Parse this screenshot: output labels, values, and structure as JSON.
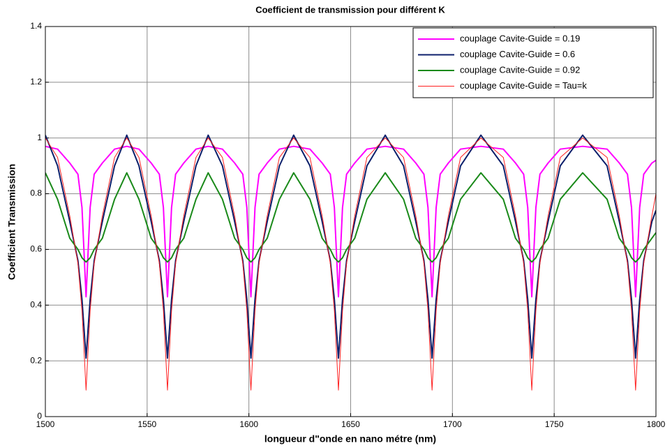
{
  "chart_data": {
    "type": "line",
    "title": "Coefficient de transmission pour différent K",
    "xlabel": "longueur d\"onde en nano métre (nm)",
    "ylabel": "Coefficient Transmission",
    "x": [
      1500,
      1506,
      1512,
      1516,
      1518,
      1520,
      1522,
      1524,
      1528,
      1534,
      1540,
      1546,
      1552,
      1556,
      1558,
      1560,
      1562,
      1564,
      1568,
      1574,
      1580,
      1587,
      1593,
      1597,
      1599,
      1601,
      1603,
      1605,
      1609,
      1615,
      1622,
      1630,
      1636,
      1640,
      1642,
      1644,
      1646,
      1648,
      1652,
      1658,
      1667,
      1676,
      1682,
      1686,
      1688,
      1690,
      1692,
      1694,
      1698,
      1704,
      1714,
      1725,
      1731,
      1735,
      1737,
      1739,
      1741,
      1743,
      1747,
      1753,
      1764,
      1776,
      1782,
      1786,
      1788,
      1790,
      1792,
      1794,
      1798,
      1800
    ],
    "series": [
      {
        "name": "couplage Cavite-Guide = 0.19",
        "color": "#ff00ff",
        "width": 2,
        "values": [
          0.97,
          0.96,
          0.91,
          0.87,
          0.75,
          0.43,
          0.75,
          0.87,
          0.91,
          0.96,
          0.97,
          0.96,
          0.91,
          0.87,
          0.75,
          0.43,
          0.75,
          0.87,
          0.91,
          0.96,
          0.97,
          0.96,
          0.91,
          0.87,
          0.75,
          0.43,
          0.75,
          0.87,
          0.91,
          0.96,
          0.97,
          0.96,
          0.91,
          0.87,
          0.75,
          0.43,
          0.75,
          0.87,
          0.91,
          0.96,
          0.97,
          0.96,
          0.91,
          0.87,
          0.75,
          0.43,
          0.75,
          0.87,
          0.91,
          0.96,
          0.97,
          0.96,
          0.91,
          0.87,
          0.75,
          0.43,
          0.75,
          0.87,
          0.91,
          0.96,
          0.97,
          0.96,
          0.91,
          0.87,
          0.75,
          0.43,
          0.75,
          0.87,
          0.91,
          0.92
        ]
      },
      {
        "name": "couplage Cavite-Guide = 0.6",
        "color": "#0c1f6b",
        "width": 2,
        "values": [
          1.01,
          0.9,
          0.7,
          0.56,
          0.42,
          0.21,
          0.42,
          0.56,
          0.7,
          0.9,
          1.01,
          0.9,
          0.7,
          0.56,
          0.42,
          0.21,
          0.42,
          0.56,
          0.7,
          0.9,
          1.01,
          0.9,
          0.7,
          0.56,
          0.42,
          0.21,
          0.42,
          0.56,
          0.7,
          0.9,
          1.01,
          0.9,
          0.7,
          0.56,
          0.42,
          0.21,
          0.42,
          0.56,
          0.7,
          0.9,
          1.01,
          0.9,
          0.7,
          0.56,
          0.42,
          0.21,
          0.42,
          0.56,
          0.7,
          0.9,
          1.01,
          0.9,
          0.7,
          0.56,
          0.42,
          0.21,
          0.42,
          0.56,
          0.7,
          0.9,
          1.01,
          0.9,
          0.7,
          0.56,
          0.42,
          0.21,
          0.42,
          0.56,
          0.7,
          0.74
        ]
      },
      {
        "name": "couplage Cavite-Guide = 0.92",
        "color": "#1a8a1a",
        "width": 2,
        "values": [
          0.875,
          0.78,
          0.64,
          0.6,
          0.57,
          0.555,
          0.57,
          0.6,
          0.64,
          0.78,
          0.875,
          0.78,
          0.64,
          0.6,
          0.57,
          0.555,
          0.57,
          0.6,
          0.64,
          0.78,
          0.875,
          0.78,
          0.64,
          0.6,
          0.57,
          0.555,
          0.57,
          0.6,
          0.64,
          0.78,
          0.875,
          0.78,
          0.64,
          0.6,
          0.57,
          0.555,
          0.57,
          0.6,
          0.64,
          0.78,
          0.875,
          0.78,
          0.64,
          0.6,
          0.57,
          0.555,
          0.57,
          0.6,
          0.64,
          0.78,
          0.875,
          0.78,
          0.64,
          0.6,
          0.57,
          0.555,
          0.57,
          0.6,
          0.64,
          0.78,
          0.875,
          0.78,
          0.64,
          0.6,
          0.57,
          0.555,
          0.57,
          0.6,
          0.64,
          0.66
        ]
      },
      {
        "name": "couplage Cavite-Guide = Tau=k",
        "color": "#ff2020",
        "width": 1,
        "values": [
          1.0,
          0.93,
          0.72,
          0.55,
          0.38,
          0.095,
          0.38,
          0.55,
          0.72,
          0.93,
          1.0,
          0.93,
          0.72,
          0.55,
          0.38,
          0.095,
          0.38,
          0.55,
          0.72,
          0.93,
          1.0,
          0.93,
          0.72,
          0.55,
          0.38,
          0.095,
          0.38,
          0.55,
          0.72,
          0.93,
          1.0,
          0.93,
          0.72,
          0.55,
          0.38,
          0.095,
          0.38,
          0.55,
          0.72,
          0.93,
          1.0,
          0.93,
          0.72,
          0.55,
          0.38,
          0.095,
          0.38,
          0.55,
          0.72,
          0.93,
          1.0,
          0.93,
          0.72,
          0.55,
          0.38,
          0.095,
          0.38,
          0.55,
          0.72,
          0.93,
          1.0,
          0.93,
          0.72,
          0.55,
          0.38,
          0.095,
          0.38,
          0.55,
          0.72,
          0.8
        ]
      }
    ],
    "xlim": [
      1500,
      1800
    ],
    "xticks": [
      1500,
      1550,
      1600,
      1650,
      1700,
      1750,
      1800
    ],
    "ylim": [
      0,
      1.4
    ],
    "yticks": [
      0,
      0.2,
      0.4,
      0.6,
      0.8,
      1,
      1.2,
      1.4
    ],
    "grid": true,
    "legend": "northeast"
  }
}
